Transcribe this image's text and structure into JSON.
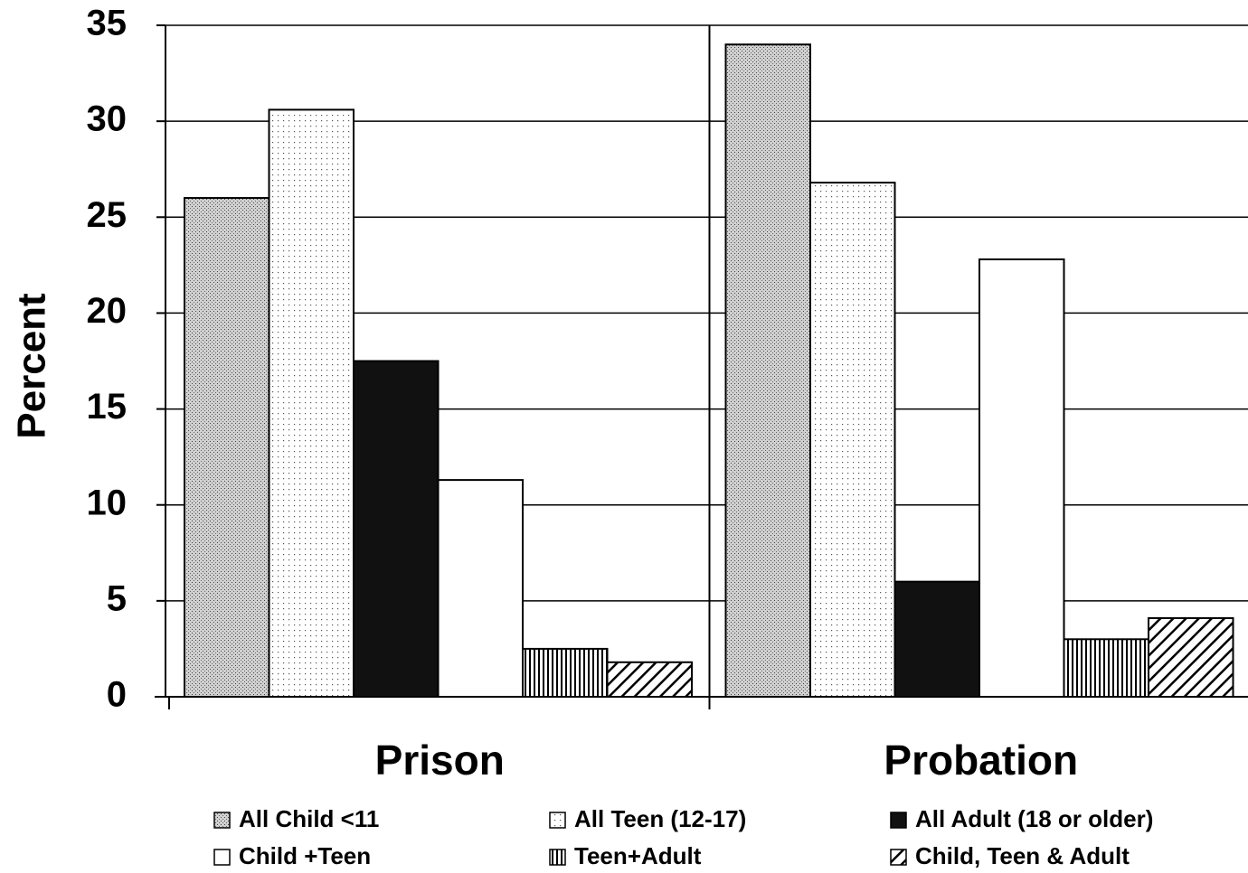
{
  "chart_data": {
    "type": "bar",
    "y_label": "Percent",
    "categories": [
      "Prison",
      "Probation"
    ],
    "series": [
      {
        "name": "All Child <11",
        "color": "#b8b8b8",
        "pattern": "stipple",
        "values": [
          26,
          34
        ]
      },
      {
        "name": "All Teen (12-17)",
        "color": "#ffffff",
        "pattern": "dots",
        "values": [
          30.6,
          26.8
        ]
      },
      {
        "name": "All Adult (18 or older)",
        "color": "#111111",
        "pattern": "solid",
        "values": [
          17.5,
          6
        ]
      },
      {
        "name": "Child +Teen",
        "color": "#ffffff",
        "pattern": "solid",
        "values": [
          11.3,
          22.8
        ]
      },
      {
        "name": "Teen+Adult",
        "color": "#ffffff",
        "pattern": "vertical",
        "values": [
          2.5,
          3
        ]
      },
      {
        "name": "Child, Teen & Adult",
        "color": "#ffffff",
        "pattern": "diagonal",
        "values": [
          1.8,
          4.1
        ]
      }
    ],
    "ylim": [
      0,
      35
    ],
    "yticks": [
      0,
      5,
      10,
      15,
      20,
      25,
      30,
      35
    ],
    "grid": true
  }
}
